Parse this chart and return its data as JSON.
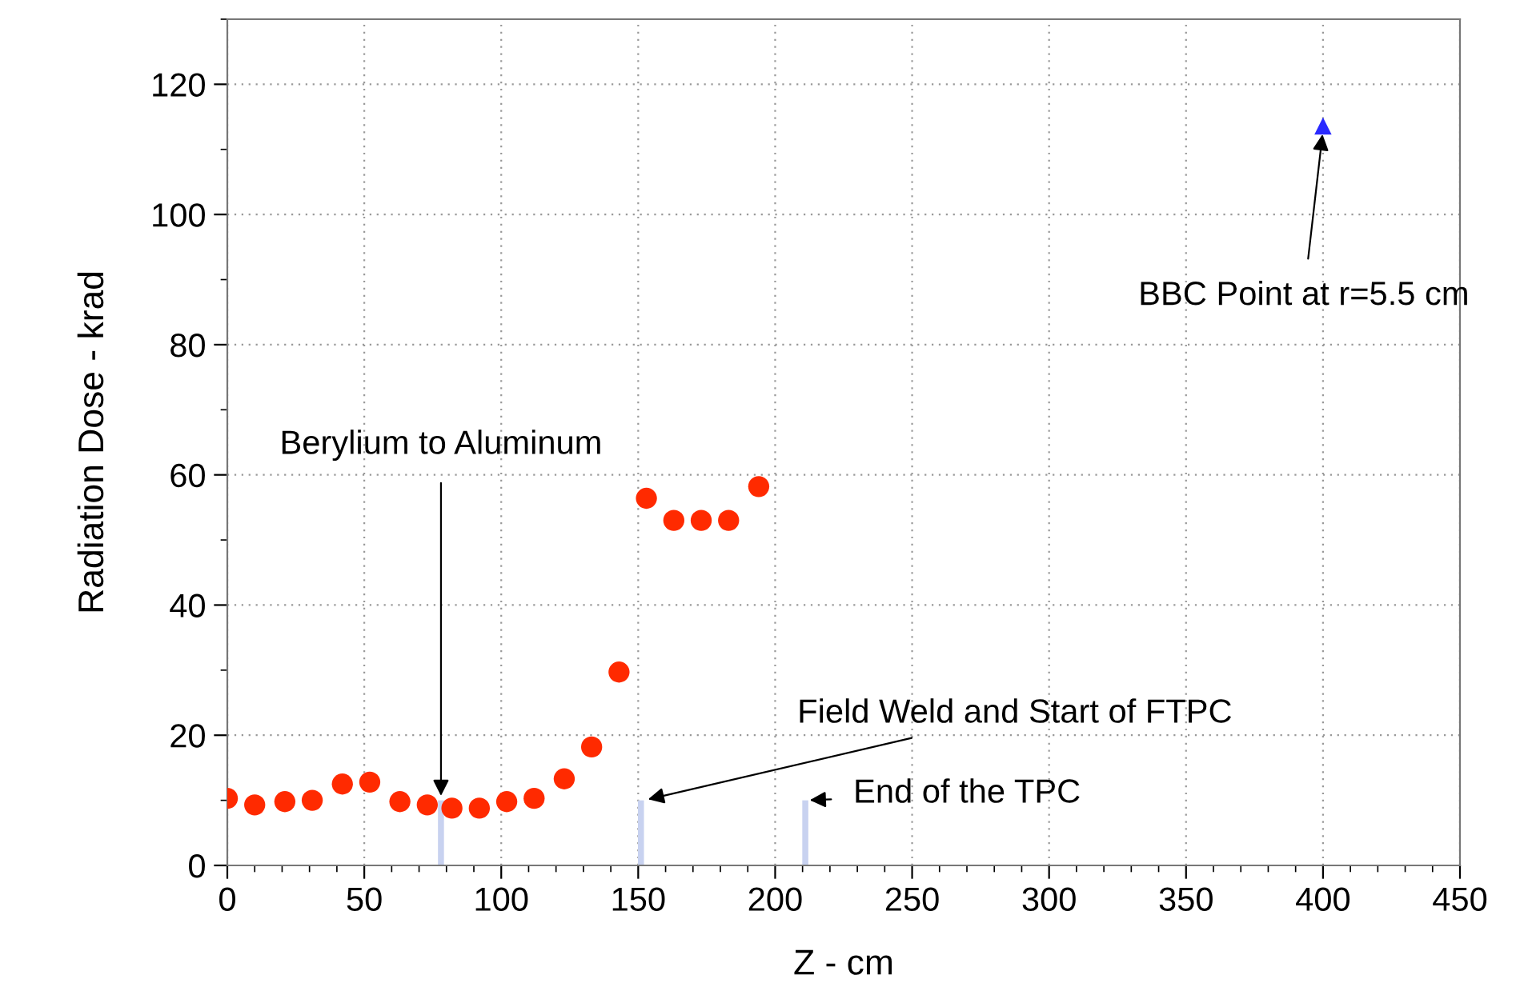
{
  "chart_data": {
    "type": "scatter",
    "xlabel": "Z - cm",
    "ylabel": "Radiation Dose - krad",
    "xlim": [
      0,
      450
    ],
    "xticks": [
      0,
      50,
      100,
      150,
      200,
      250,
      300,
      350,
      400,
      450
    ],
    "ylim": [
      0,
      130
    ],
    "yticks": [
      0,
      20,
      40,
      60,
      80,
      100,
      120
    ],
    "grid": true,
    "series": [
      {
        "type": "bar",
        "color": "#c8d2f0",
        "x": [
          78,
          151,
          211
        ],
        "values": [
          10,
          10,
          10
        ]
      },
      {
        "marker": "circle",
        "color": "#ff2a00",
        "x": [
          0,
          10,
          21,
          31,
          42,
          52,
          63,
          73,
          82,
          92,
          102,
          112,
          123,
          133,
          143,
          153,
          163,
          173,
          183,
          194
        ],
        "values": [
          10.3,
          9.3,
          9.8,
          10,
          12.5,
          12.8,
          9.8,
          9.3,
          8.8,
          8.8,
          9.8,
          10.3,
          13.3,
          18.2,
          29.7,
          56.4,
          53,
          53,
          53,
          58.2
        ]
      },
      {
        "marker": "triangle",
        "color": "#2a2aff",
        "x": [
          400
        ],
        "values": [
          113.6
        ]
      }
    ],
    "annotations": [
      {
        "text": "Berylium to Aluminum",
        "x": 78,
        "y": 10
      },
      {
        "text": "Field Weld and Start of FTPC",
        "x": 152,
        "y": 10
      },
      {
        "text": "End of the TPC",
        "x": 211,
        "y": 10
      },
      {
        "text": "BBC Point at r=5.5 cm",
        "x": 400,
        "y": 113
      }
    ]
  }
}
